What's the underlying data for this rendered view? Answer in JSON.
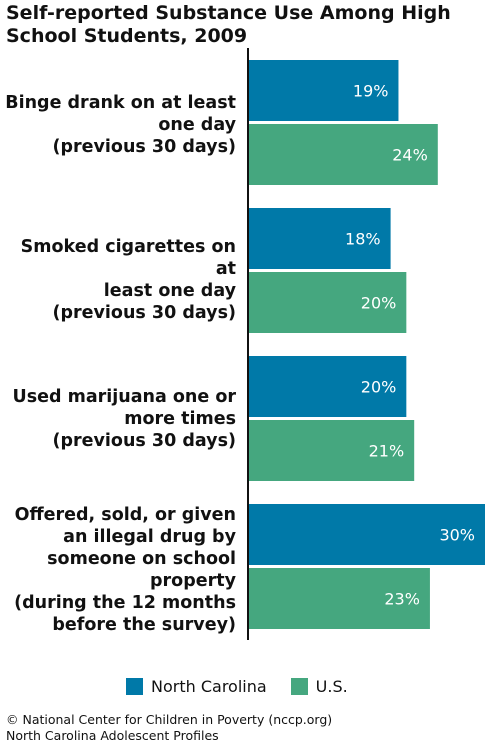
{
  "title": "Self-reported Substance Use Among High School Students, 2009",
  "chart_data": {
    "type": "bar",
    "orientation": "horizontal",
    "categories": [
      "Binge drank on at least one day (previous 30 days)",
      "Smoked cigarettes on at least one day (previous 30 days)",
      "Used marijuana one or more times (previous 30 days)",
      "Offered, sold, or given an illegal drug by someone on school property (during the 12 months before the survey)"
    ],
    "category_lines": [
      [
        "Binge drank on at least",
        "one day",
        "(previous 30 days)"
      ],
      [
        "Smoked cigarettes on at",
        "least one day",
        "(previous 30 days)"
      ],
      [
        "Used marijuana one or",
        "more times",
        "(previous 30 days)"
      ],
      [
        "Offered, sold, or given",
        "an illegal drug by",
        "someone on school",
        "property",
        "(during the 12 months",
        "before the survey)"
      ]
    ],
    "series": [
      {
        "name": "North Carolina",
        "color": "#0079a8",
        "values": [
          19,
          18,
          20,
          30
        ],
        "labels": [
          "19%",
          "18%",
          "20%",
          "30%"
        ]
      },
      {
        "name": "U.S.",
        "color": "#45a77f",
        "values": [
          24,
          20,
          21,
          23
        ],
        "labels": [
          "24%",
          "20%",
          "21%",
          "23%"
        ]
      }
    ],
    "unit": "%",
    "xlim": [
      0,
      30
    ],
    "grid": false,
    "legend_position": "bottom"
  },
  "footer": {
    "line1": "© National Center for Children in Poverty (nccp.org)",
    "line2": "North Carolina Adolescent Profiles"
  }
}
